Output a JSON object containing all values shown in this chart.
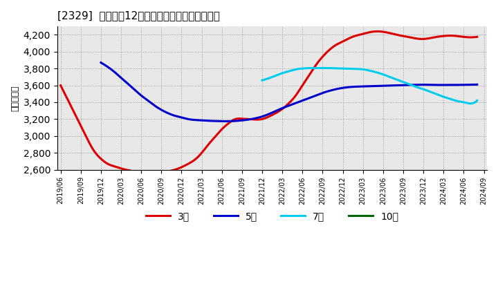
{
  "title": "[2329]  経常利益12か月移動合計の平均値の推移",
  "ylabel": "（百万円）",
  "ylim": [
    2600,
    4300
  ],
  "yticks": [
    2600,
    2800,
    3000,
    3200,
    3400,
    3600,
    3800,
    4000,
    4200
  ],
  "background_color": "#ffffff",
  "plot_bg_color": "#e8e8e8",
  "series": {
    "3年": {
      "color": "#dd0000",
      "x": [
        0,
        1,
        2,
        3,
        4,
        5,
        6,
        7,
        8,
        9,
        10,
        11,
        12,
        13,
        14,
        15,
        16,
        17,
        18,
        19,
        20,
        21,
        22,
        23,
        24,
        25,
        26,
        27,
        28,
        29,
        30,
        31,
        32,
        33,
        34,
        35,
        36,
        37,
        38,
        39,
        40,
        41,
        42,
        43,
        44,
        45,
        46,
        47,
        48,
        49,
        50,
        51,
        52,
        53,
        54,
        55,
        56,
        57,
        58,
        59,
        60,
        61,
        62
      ],
      "y": [
        3600,
        3440,
        3280,
        3120,
        2960,
        2820,
        2730,
        2670,
        2640,
        2615,
        2595,
        2580,
        2573,
        2570,
        2568,
        2570,
        2580,
        2600,
        2630,
        2670,
        2720,
        2800,
        2900,
        2990,
        3080,
        3150,
        3200,
        3205,
        3200,
        3195,
        3200,
        3230,
        3270,
        3320,
        3390,
        3480,
        3600,
        3720,
        3840,
        3940,
        4020,
        4080,
        4120,
        4160,
        4190,
        4210,
        4230,
        4240,
        4235,
        4220,
        4200,
        4185,
        4170,
        4155,
        4150,
        4160,
        4175,
        4185,
        4190,
        4185,
        4175,
        4170,
        4175
      ]
    },
    "5年": {
      "color": "#0000cc",
      "x": [
        6,
        7,
        8,
        9,
        10,
        11,
        12,
        13,
        14,
        15,
        16,
        17,
        18,
        19,
        20,
        21,
        22,
        23,
        24,
        25,
        26,
        27,
        28,
        29,
        30,
        31,
        32,
        33,
        34,
        35,
        36,
        37,
        38,
        39,
        40,
        41,
        42,
        43,
        44,
        45,
        46,
        47,
        48,
        49,
        50,
        51,
        52,
        53,
        54,
        55,
        56,
        57,
        58,
        59,
        60,
        61,
        62
      ],
      "y": [
        3870,
        3820,
        3760,
        3690,
        3620,
        3550,
        3480,
        3420,
        3360,
        3310,
        3270,
        3240,
        3220,
        3200,
        3190,
        3185,
        3180,
        3178,
        3175,
        3175,
        3178,
        3185,
        3195,
        3210,
        3230,
        3260,
        3295,
        3330,
        3360,
        3390,
        3420,
        3450,
        3480,
        3510,
        3535,
        3555,
        3570,
        3580,
        3585,
        3588,
        3590,
        3592,
        3595,
        3598,
        3600,
        3602,
        3605,
        3607,
        3608,
        3607,
        3605,
        3605,
        3605,
        3605,
        3607,
        3608,
        3610
      ]
    },
    "7年": {
      "color": "#00ccee",
      "x": [
        30,
        31,
        32,
        33,
        34,
        35,
        36,
        37,
        38,
        39,
        40,
        41,
        42,
        43,
        44,
        45,
        46,
        47,
        48,
        49,
        50,
        51,
        52,
        53,
        54,
        55,
        56,
        57,
        58,
        59,
        60,
        61,
        62
      ],
      "y": [
        3660,
        3685,
        3715,
        3745,
        3768,
        3790,
        3800,
        3805,
        3805,
        3805,
        3805,
        3802,
        3800,
        3798,
        3795,
        3790,
        3775,
        3755,
        3730,
        3700,
        3670,
        3640,
        3610,
        3580,
        3555,
        3525,
        3495,
        3465,
        3440,
        3415,
        3400,
        3385,
        3420
      ]
    },
    "10年": {
      "color": "#006600",
      "x": [],
      "y": []
    }
  },
  "xtick_labels": [
    "2019/06",
    "2019/09",
    "2019/12",
    "2020/03",
    "2020/06",
    "2020/09",
    "2020/12",
    "2021/03",
    "2021/06",
    "2021/09",
    "2021/12",
    "2022/03",
    "2022/06",
    "2022/09",
    "2022/12",
    "2023/03",
    "2023/06",
    "2023/09",
    "2023/12",
    "2024/03",
    "2024/06",
    "2024/09"
  ],
  "xtick_positions": [
    0,
    3,
    6,
    9,
    12,
    15,
    18,
    21,
    24,
    27,
    30,
    33,
    36,
    39,
    42,
    45,
    48,
    51,
    54,
    57,
    60,
    63
  ],
  "legend_labels": [
    "3年",
    "5年",
    "7年",
    "10年"
  ],
  "legend_colors": [
    "#dd0000",
    "#0000cc",
    "#00ccee",
    "#006600"
  ]
}
